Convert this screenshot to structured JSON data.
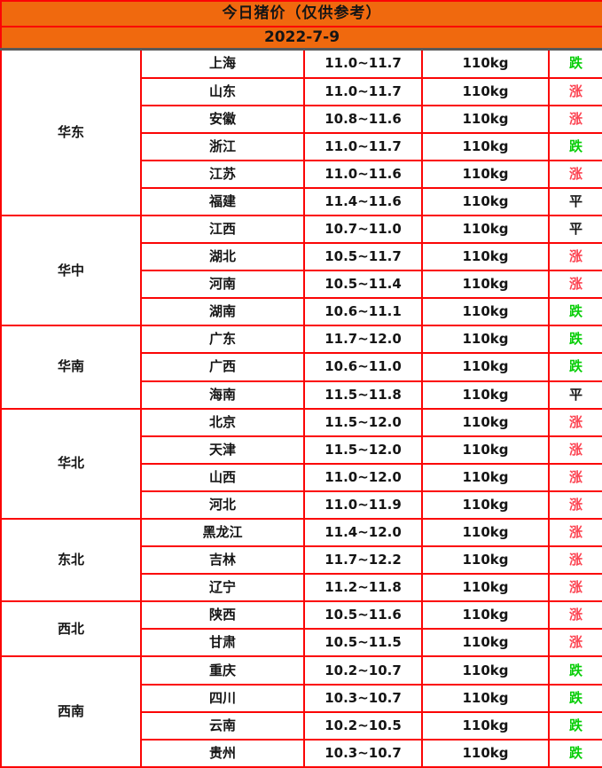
{
  "header": {
    "title": "今日猪价（仅供参考）",
    "date": "2022-7-9"
  },
  "colors": {
    "header_bg": "#F0690E",
    "border_red": "#FB0505",
    "divider_gray": "#595959",
    "text": "#151515",
    "trend": {
      "涨": "#FC4452",
      "跌": "#08CE08",
      "平": "#151515"
    }
  },
  "chart_data": {
    "type": "table",
    "title": "今日猪价（仅供参考）",
    "date": "2022-7-9",
    "weight_unit": "110kg",
    "price_unit_note": "price range as shown, e.g. 11.0~11.7",
    "regions": [
      {
        "name": "华东",
        "rows": [
          {
            "province": "上海",
            "price": "11.0~11.7",
            "weight": "110kg",
            "trend": "跌"
          },
          {
            "province": "山东",
            "price": "11.0~11.7",
            "weight": "110kg",
            "trend": "涨"
          },
          {
            "province": "安徽",
            "price": "10.8~11.6",
            "weight": "110kg",
            "trend": "涨"
          },
          {
            "province": "浙江",
            "price": "11.0~11.7",
            "weight": "110kg",
            "trend": "跌"
          },
          {
            "province": "江苏",
            "price": "11.0~11.6",
            "weight": "110kg",
            "trend": "涨"
          },
          {
            "province": "福建",
            "price": "11.4~11.6",
            "weight": "110kg",
            "trend": "平"
          }
        ]
      },
      {
        "name": "华中",
        "rows": [
          {
            "province": "江西",
            "price": "10.7~11.0",
            "weight": "110kg",
            "trend": "平"
          },
          {
            "province": "湖北",
            "price": "10.5~11.7",
            "weight": "110kg",
            "trend": "涨"
          },
          {
            "province": "河南",
            "price": "10.5~11.4",
            "weight": "110kg",
            "trend": "涨"
          },
          {
            "province": "湖南",
            "price": "10.6~11.1",
            "weight": "110kg",
            "trend": "跌"
          }
        ]
      },
      {
        "name": "华南",
        "rows": [
          {
            "province": "广东",
            "price": "11.7~12.0",
            "weight": "110kg",
            "trend": "跌"
          },
          {
            "province": "广西",
            "price": "10.6~11.0",
            "weight": "110kg",
            "trend": "跌"
          },
          {
            "province": "海南",
            "price": "11.5~11.8",
            "weight": "110kg",
            "trend": "平"
          }
        ]
      },
      {
        "name": "华北",
        "rows": [
          {
            "province": "北京",
            "price": "11.5~12.0",
            "weight": "110kg",
            "trend": "涨"
          },
          {
            "province": "天津",
            "price": "11.5~12.0",
            "weight": "110kg",
            "trend": "涨"
          },
          {
            "province": "山西",
            "price": "11.0~12.0",
            "weight": "110kg",
            "trend": "涨"
          },
          {
            "province": "河北",
            "price": "11.0~11.9",
            "weight": "110kg",
            "trend": "涨"
          }
        ]
      },
      {
        "name": "东北",
        "rows": [
          {
            "province": "黑龙江",
            "price": "11.4~12.0",
            "weight": "110kg",
            "trend": "涨"
          },
          {
            "province": "吉林",
            "price": "11.7~12.2",
            "weight": "110kg",
            "trend": "涨"
          },
          {
            "province": "辽宁",
            "price": "11.2~11.8",
            "weight": "110kg",
            "trend": "涨"
          }
        ]
      },
      {
        "name": "西北",
        "rows": [
          {
            "province": "陕西",
            "price": "10.5~11.6",
            "weight": "110kg",
            "trend": "涨"
          },
          {
            "province": "甘肃",
            "price": "10.5~11.5",
            "weight": "110kg",
            "trend": "涨"
          }
        ]
      },
      {
        "name": "西南",
        "rows": [
          {
            "province": "重庆",
            "price": "10.2~10.7",
            "weight": "110kg",
            "trend": "跌"
          },
          {
            "province": "四川",
            "price": "10.3~10.7",
            "weight": "110kg",
            "trend": "跌"
          },
          {
            "province": "云南",
            "price": "10.2~10.5",
            "weight": "110kg",
            "trend": "跌"
          },
          {
            "province": "贵州",
            "price": "10.3~10.7",
            "weight": "110kg",
            "trend": "跌"
          }
        ]
      }
    ]
  }
}
